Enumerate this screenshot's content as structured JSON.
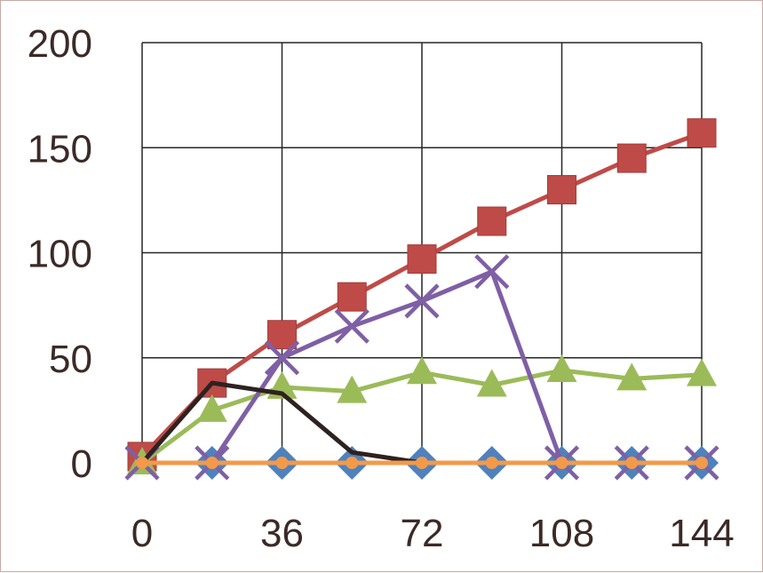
{
  "chart_data": {
    "type": "line",
    "title": "",
    "xlabel": "",
    "ylabel": "",
    "xlim": [
      0,
      144
    ],
    "ylim": [
      0,
      200
    ],
    "x_ticks": [
      "0",
      "36",
      "72",
      "108",
      "144"
    ],
    "y_ticks": [
      "0",
      "50",
      "100",
      "150",
      "200"
    ],
    "grid": true,
    "legend": "none",
    "colors": {
      "grid": "#262626",
      "tick_text": "#3b2a26",
      "frame": "#c9a9a6"
    },
    "series": [
      {
        "color": "#4f81bd",
        "marker": "diamond",
        "x": [
          18,
          36,
          54,
          72,
          90,
          108,
          126,
          144
        ],
        "y": [
          0,
          0,
          0,
          0,
          0,
          0,
          0,
          0
        ]
      },
      {
        "color": "#be4b48",
        "marker": "square",
        "x": [
          0,
          18,
          36,
          54,
          72,
          90,
          108,
          126,
          144
        ],
        "y": [
          3,
          38,
          61,
          79,
          97,
          115,
          130,
          145,
          157
        ]
      },
      {
        "color": "#9bbb59",
        "marker": "triangle",
        "x": [
          0,
          18,
          36,
          54,
          72,
          90,
          108,
          126,
          144
        ],
        "y": [
          0,
          25,
          36,
          34,
          43,
          37,
          44,
          40,
          42
        ]
      },
      {
        "color": "#7f5fa5",
        "marker": "x",
        "x": [
          0,
          18,
          36,
          54,
          72,
          90,
          108,
          126,
          144
        ],
        "y": [
          0,
          0,
          50,
          65,
          77,
          91,
          0,
          0,
          0
        ]
      },
      {
        "color": "#2e2220",
        "marker": "none",
        "x": [
          0,
          18,
          36,
          54,
          72
        ],
        "y": [
          0,
          38,
          33,
          5,
          0
        ]
      },
      {
        "color": "#f29a4a",
        "marker": "circle",
        "x": [
          0,
          18,
          36,
          54,
          72,
          90,
          108,
          126,
          144
        ],
        "y": [
          0,
          0,
          0,
          0,
          0,
          0,
          0,
          0,
          0
        ]
      }
    ]
  }
}
